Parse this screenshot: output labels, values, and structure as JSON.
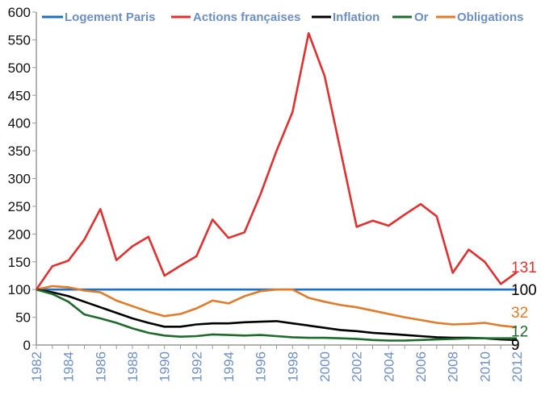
{
  "chart_data": {
    "type": "line",
    "title": "",
    "xlabel": "",
    "ylabel": "",
    "ylim": [
      0,
      600
    ],
    "xlim": [
      1982,
      2012
    ],
    "grid": false,
    "legend_position": "top",
    "y_ticks": [
      "0",
      "50",
      "100",
      "150",
      "200",
      "250",
      "300",
      "350",
      "400",
      "450",
      "500",
      "550",
      "600"
    ],
    "x_ticks": [
      "1982",
      "1984",
      "1986",
      "1988",
      "1990",
      "1992",
      "1994",
      "1996",
      "1998",
      "2000",
      "2002",
      "2004",
      "2006",
      "2008",
      "2010",
      "2012"
    ],
    "x": [
      1982,
      1983,
      1984,
      1985,
      1986,
      1987,
      1988,
      1989,
      1990,
      1991,
      1992,
      1993,
      1994,
      1995,
      1996,
      1997,
      1998,
      1999,
      2000,
      2001,
      2002,
      2003,
      2004,
      2005,
      2006,
      2007,
      2008,
      2009,
      2010,
      2011,
      2012
    ],
    "series": [
      {
        "name": "Logement Paris",
        "color": "#1f6fbf",
        "end_label": "100",
        "end_label_color": "#000000",
        "values": [
          100,
          100,
          100,
          100,
          100,
          100,
          100,
          100,
          100,
          100,
          100,
          100,
          100,
          100,
          100,
          100,
          100,
          100,
          100,
          100,
          100,
          100,
          100,
          100,
          100,
          100,
          100,
          100,
          100,
          100,
          100
        ]
      },
      {
        "name": "Actions françaises",
        "color": "#e03030",
        "end_label": "131",
        "end_label_color": "#e03030",
        "values": [
          100,
          142,
          152,
          190,
          245,
          153,
          178,
          195,
          125,
          143,
          160,
          226,
          193,
          203,
          272,
          350,
          420,
          562,
          485,
          350,
          213,
          224,
          215,
          235,
          254,
          232,
          130,
          172,
          150,
          110,
          131
        ]
      },
      {
        "name": "Inflation",
        "color": "#000000",
        "end_label": "9",
        "end_label_color": "#000000",
        "values": [
          100,
          95,
          88,
          78,
          68,
          58,
          48,
          40,
          33,
          33,
          37,
          39,
          39,
          41,
          42,
          43,
          39,
          35,
          31,
          27,
          25,
          22,
          20,
          18,
          16,
          14,
          13,
          13,
          12,
          10,
          9
        ]
      },
      {
        "name": "Or",
        "color": "#1e6b2c",
        "end_label": "12",
        "end_label_color": "#1e6b2c",
        "values": [
          100,
          92,
          78,
          55,
          48,
          40,
          30,
          22,
          17,
          15,
          16,
          19,
          18,
          17,
          18,
          16,
          14,
          13,
          13,
          12,
          11,
          9,
          8,
          8,
          9,
          10,
          11,
          12,
          12,
          12,
          12
        ]
      },
      {
        "name": "Obligations",
        "color": "#e07b2a",
        "end_label": "32",
        "end_label_color": "#e07b2a",
        "values": [
          100,
          106,
          104,
          98,
          95,
          80,
          70,
          60,
          52,
          56,
          66,
          80,
          75,
          88,
          97,
          100,
          100,
          85,
          78,
          72,
          68,
          62,
          56,
          50,
          45,
          40,
          37,
          38,
          40,
          35,
          32
        ]
      }
    ]
  }
}
